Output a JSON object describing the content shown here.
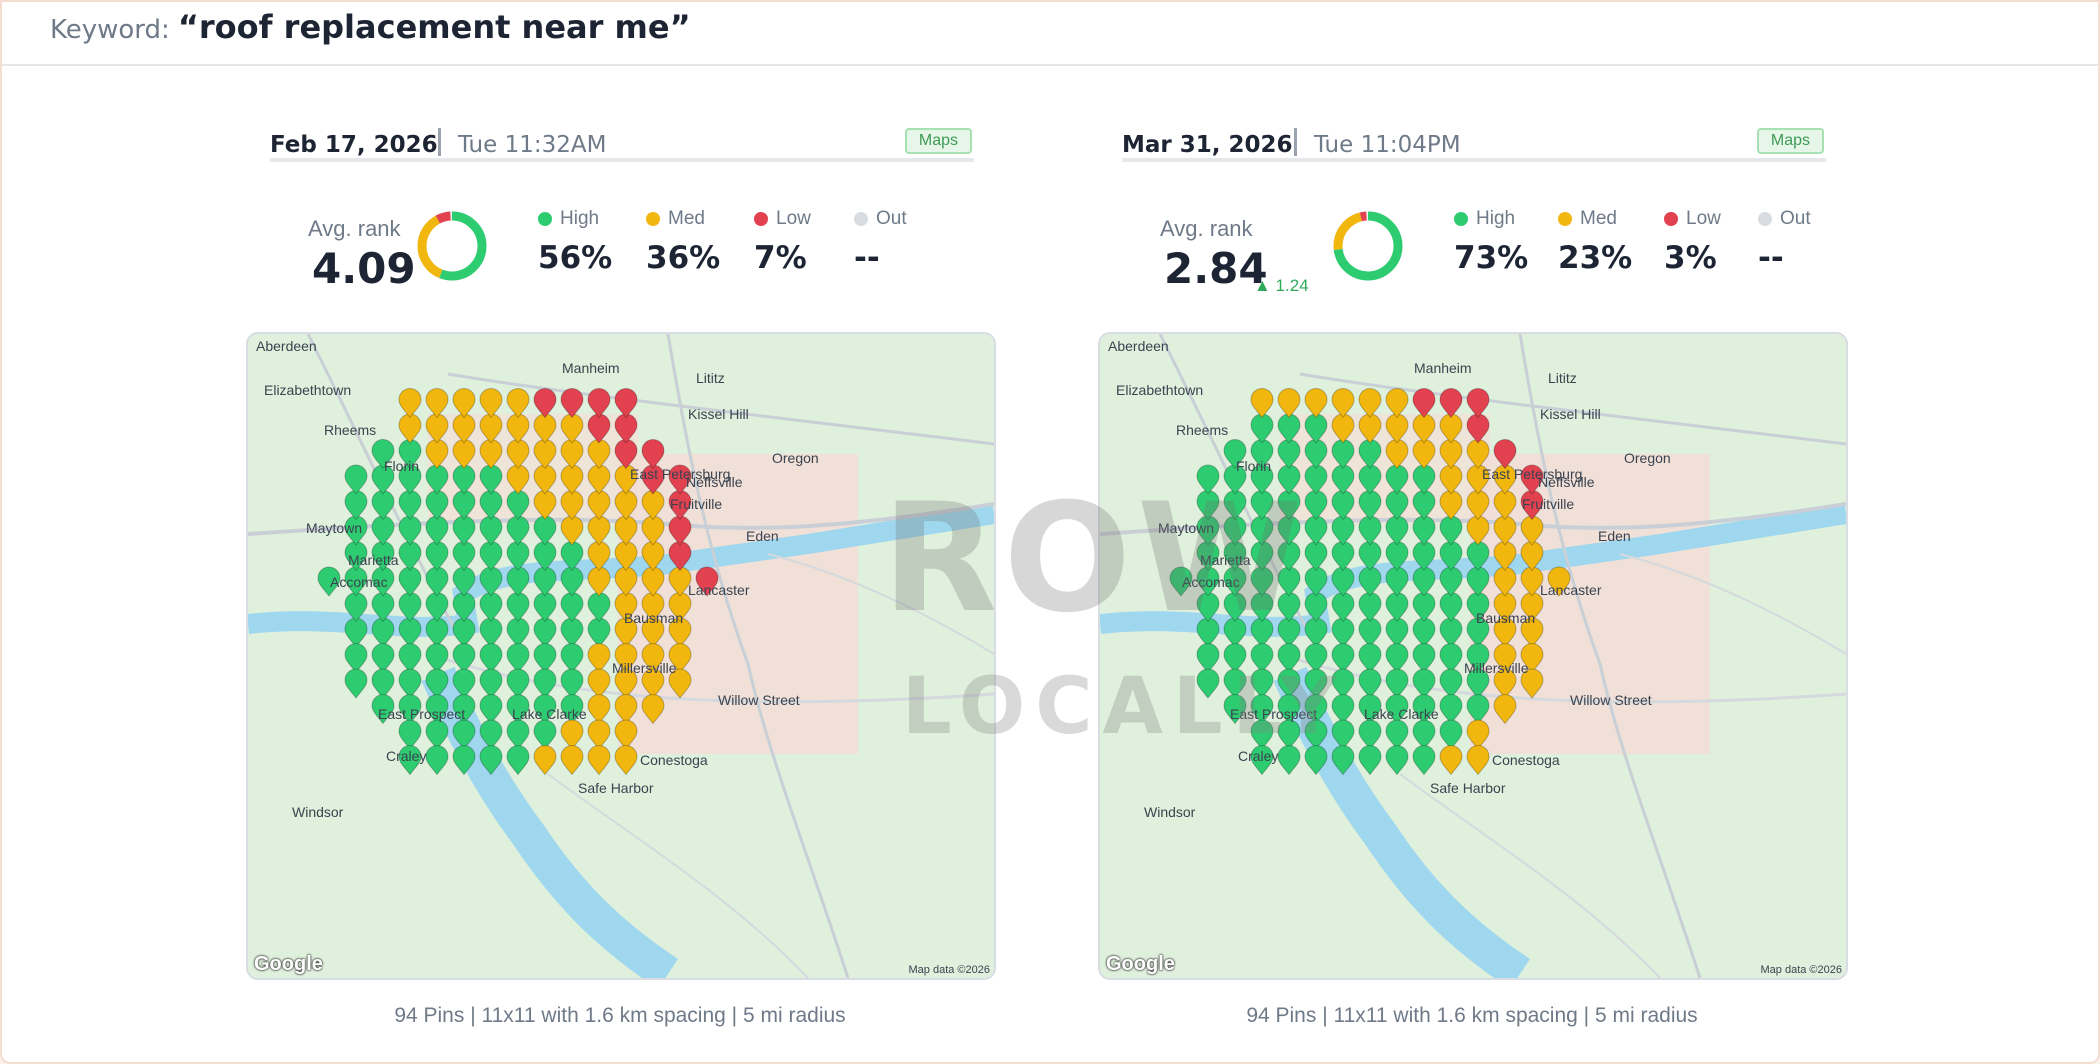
{
  "keyword": {
    "label": "Keyword:",
    "value": "“roof replacement near me”"
  },
  "colors": {
    "high": "#2ecc71",
    "med": "#f1b70e",
    "low": "#e24150",
    "out": "#d9dce0"
  },
  "legend": {
    "high": "High",
    "med": "Med",
    "low": "Low",
    "out": "Out"
  },
  "panels": [
    {
      "date": "Feb 17, 2026",
      "time": "Tue 11:32AM",
      "tag": "Maps",
      "avg_label": "Avg. rank",
      "avg_value": "4.09",
      "delta": "",
      "high": "56%",
      "med": "36%",
      "low": "7%",
      "out": "--",
      "high_pct": 56,
      "med_pct": 36,
      "low_pct": 7,
      "footer": "94 Pins | 11x11 with 1.6 km spacing | 5 mi radius"
    },
    {
      "date": "Mar 31, 2026",
      "time": "Tue 11:04PM",
      "tag": "Maps",
      "avg_label": "Avg. rank",
      "avg_value": "2.84",
      "delta": "▲ 1.24",
      "high": "73%",
      "med": "23%",
      "low": "3%",
      "out": "--",
      "high_pct": 73,
      "med_pct": 23,
      "low_pct": 3,
      "footer": "94 Pins | 11x11 with 1.6 km spacing | 5 mi radius"
    }
  ],
  "map_places": [
    "Aberdeen",
    "Elizabethtown",
    "Manheim",
    "Lititz",
    "Kissel Hill",
    "Rheems",
    "Oregon",
    "Florin",
    "East Petersburg",
    "Neffsville",
    "Fruitville",
    "Maytown",
    "Eden",
    "Marietta",
    "Lancaster",
    "Accomac",
    "Bausman",
    "Millersville",
    "Willow Street",
    "East Prospect",
    "Craley",
    "Conestoga",
    "Safe Harbor",
    "Lake Clarke",
    "Windsor"
  ],
  "map_footer": {
    "logo": "Google",
    "attribution": "Map data ©2026"
  },
  "watermark": {
    "top": "ROW",
    "bottom": "LOCALLY"
  }
}
